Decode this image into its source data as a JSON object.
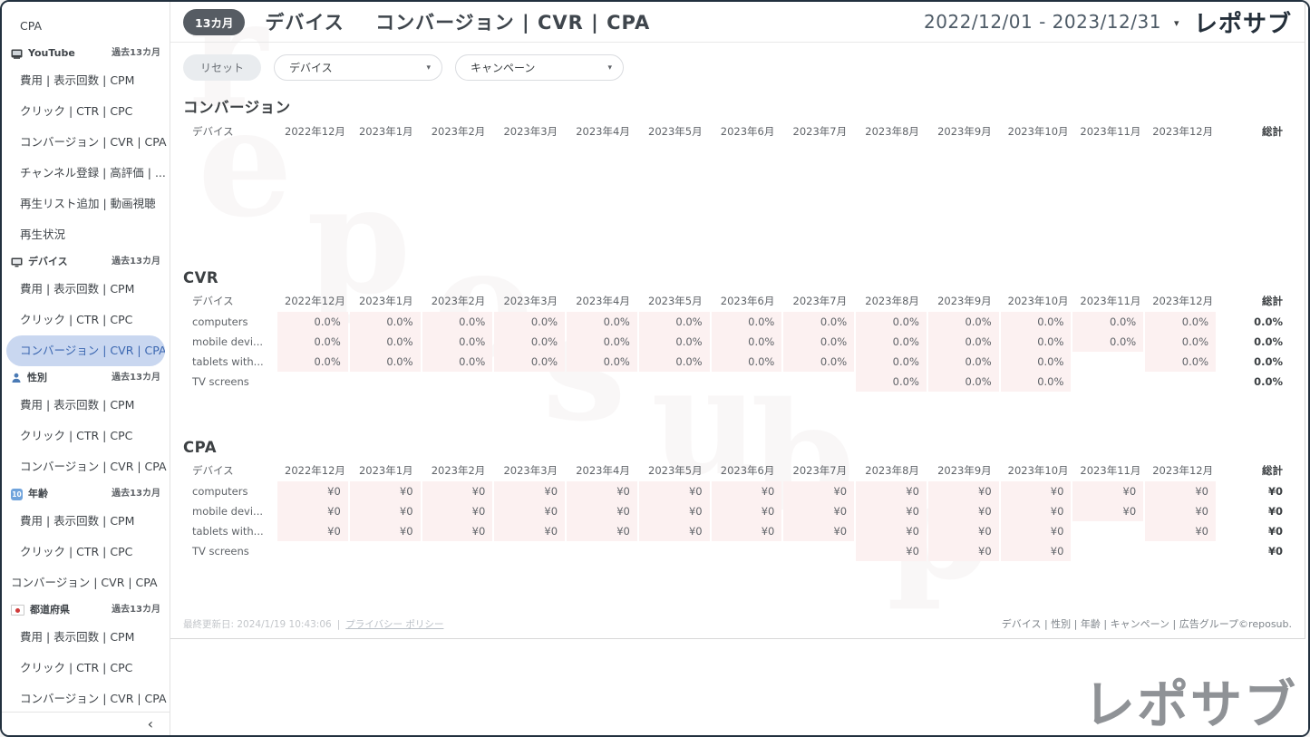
{
  "page": {
    "brand": "レポサブ",
    "watermark_letters": [
      "r",
      "e",
      "p",
      "o",
      "s",
      "u",
      "b",
      "p"
    ]
  },
  "ui": {
    "caret": "▾",
    "collapse_icon": "‹"
  },
  "colors": {
    "accent_active_bg": "#c9d7f0",
    "accent_active_text": "#3a66b0",
    "cell_bg": "#fcf1f1",
    "badge_bg": "#565c63",
    "brand_dark": "#242f3a",
    "logo_grey": "#8f9296",
    "page_border": "#22303e"
  },
  "sidebar": {
    "entries": [
      {
        "type": "item",
        "label": "CPA"
      },
      {
        "type": "section",
        "label": "YouTube",
        "icon": "youtube-tv-icon",
        "period": "過去13カ月"
      },
      {
        "type": "item",
        "label": "費用 | 表示回数 | CPM"
      },
      {
        "type": "item",
        "label": "クリック | CTR | CPC"
      },
      {
        "type": "item",
        "label": "コンバージョン | CVR | CPA"
      },
      {
        "type": "item",
        "label": "チャンネル登録 | 高評価 | ..."
      },
      {
        "type": "item",
        "label": "再生リスト追加 | 動画視聴"
      },
      {
        "type": "item",
        "label": "再生状況"
      },
      {
        "type": "section",
        "label": "デバイス",
        "icon": "device-monitor-icon",
        "period": "過去13カ月"
      },
      {
        "type": "item",
        "label": "費用 | 表示回数 | CPM"
      },
      {
        "type": "item",
        "label": "クリック | CTR | CPC"
      },
      {
        "type": "item",
        "label": "コンバージョン | CVR | CPA",
        "active": true
      },
      {
        "type": "section",
        "label": "性別",
        "icon": "gender-person-icon",
        "period": "過去13カ月"
      },
      {
        "type": "item",
        "label": "費用 | 表示回数 | CPM"
      },
      {
        "type": "item",
        "label": "クリック | CTR | CPC"
      },
      {
        "type": "item",
        "label": "コンバージョン | CVR | CPA"
      },
      {
        "type": "section",
        "label": "年齢",
        "icon": "age-10-icon",
        "icon_text": "10",
        "period": "過去13カ月"
      },
      {
        "type": "item",
        "label": "費用 | 表示回数 | CPM"
      },
      {
        "type": "item",
        "label": "クリック | CTR | CPC"
      },
      {
        "type": "item",
        "label": "コンバージョン | CVR | CPA",
        "flush": true
      },
      {
        "type": "section",
        "label": "都道府県",
        "icon": "japan-flag-icon",
        "period": "過去13カ月"
      },
      {
        "type": "item",
        "label": "費用 | 表示回数 | CPM"
      },
      {
        "type": "item",
        "label": "クリック | CTR | CPC"
      },
      {
        "type": "item",
        "label": "コンバージョン | CVR | CPA"
      }
    ]
  },
  "header": {
    "badge": "13カ月",
    "title_device": "デバイス",
    "title_metrics": "コンバージョン | CVR | CPA",
    "date_range": "2022/12/01 - 2023/12/31",
    "brand": "レポサブ"
  },
  "filters": {
    "reset_label": "リセット",
    "dropdowns": [
      {
        "label": "デバイス"
      },
      {
        "label": "キャンペーン"
      }
    ]
  },
  "table_common": {
    "device_col_label": "デバイス",
    "total_label": "総計",
    "months": [
      "2022年12月",
      "2023年1月",
      "2023年2月",
      "2023年3月",
      "2023年4月",
      "2023年5月",
      "2023年6月",
      "2023年7月",
      "2023年8月",
      "2023年9月",
      "2023年10月",
      "2023年11月",
      "2023年12月"
    ]
  },
  "tables": [
    {
      "title": "コンバージョン",
      "rows": []
    },
    {
      "title": "CVR",
      "rows": [
        {
          "label": "computers",
          "values": [
            "0.0%",
            "0.0%",
            "0.0%",
            "0.0%",
            "0.0%",
            "0.0%",
            "0.0%",
            "0.0%",
            "0.0%",
            "0.0%",
            "0.0%",
            "0.0%",
            "0.0%"
          ],
          "total": "0.0%"
        },
        {
          "label": "mobile devi...",
          "values": [
            "0.0%",
            "0.0%",
            "0.0%",
            "0.0%",
            "0.0%",
            "0.0%",
            "0.0%",
            "0.0%",
            "0.0%",
            "0.0%",
            "0.0%",
            "0.0%",
            "0.0%"
          ],
          "total": "0.0%"
        },
        {
          "label": "tablets with...",
          "values": [
            "0.0%",
            "0.0%",
            "0.0%",
            "0.0%",
            "0.0%",
            "0.0%",
            "0.0%",
            "0.0%",
            "0.0%",
            "0.0%",
            "0.0%",
            null,
            "0.0%"
          ],
          "total": "0.0%"
        },
        {
          "label": "TV screens",
          "values": [
            null,
            null,
            null,
            null,
            null,
            null,
            null,
            null,
            "0.0%",
            "0.0%",
            "0.0%",
            null,
            null
          ],
          "total": "0.0%"
        }
      ]
    },
    {
      "title": "CPA",
      "rows": [
        {
          "label": "computers",
          "values": [
            "¥0",
            "¥0",
            "¥0",
            "¥0",
            "¥0",
            "¥0",
            "¥0",
            "¥0",
            "¥0",
            "¥0",
            "¥0",
            "¥0",
            "¥0"
          ],
          "total": "¥0"
        },
        {
          "label": "mobile devi...",
          "values": [
            "¥0",
            "¥0",
            "¥0",
            "¥0",
            "¥0",
            "¥0",
            "¥0",
            "¥0",
            "¥0",
            "¥0",
            "¥0",
            "¥0",
            "¥0"
          ],
          "total": "¥0"
        },
        {
          "label": "tablets with...",
          "values": [
            "¥0",
            "¥0",
            "¥0",
            "¥0",
            "¥0",
            "¥0",
            "¥0",
            "¥0",
            "¥0",
            "¥0",
            "¥0",
            null,
            "¥0"
          ],
          "total": "¥0"
        },
        {
          "label": "TV screens",
          "values": [
            null,
            null,
            null,
            null,
            null,
            null,
            null,
            null,
            "¥0",
            "¥0",
            "¥0",
            null,
            null
          ],
          "total": "¥0"
        }
      ]
    }
  ],
  "footer": {
    "updated": "最終更新日: 2024/1/19 10:43:06",
    "separator": "|",
    "privacy": "プライバシー ポリシー",
    "dims": "デバイス | 性別 | 年齢 | キャンペーン | 広告グループ©reposub."
  }
}
